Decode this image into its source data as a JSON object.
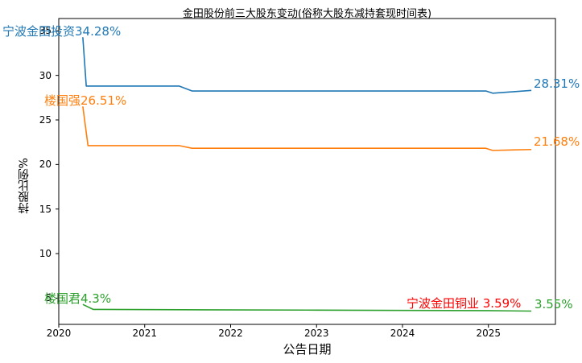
{
  "figure": {
    "background": "#ffffff"
  },
  "chart_data": {
    "type": "line",
    "title": "金田股份前三大股东变动(俗称大股东减持套现时间表)",
    "xlabel": "公告日期",
    "ylabel": "持股比例%",
    "axis_color": "#000000",
    "text_color": "#000000",
    "grid": false,
    "legend": "inline-labels",
    "xlim": [
      2020.0,
      2025.78
    ],
    "ylim": [
      2.06,
      36.38
    ],
    "xtick_labels": [
      "2020",
      "2021",
      "2022",
      "2023",
      "2024",
      "2025"
    ],
    "xtick_values": [
      2020,
      2021,
      2022,
      2023,
      2024,
      2025
    ],
    "ytick_labels": [
      "5",
      "10",
      "15",
      "20",
      "25",
      "30",
      "35"
    ],
    "ytick_values": [
      5,
      10,
      15,
      20,
      25,
      30,
      35
    ],
    "series": [
      {
        "name": "宁波金田投资",
        "color": "#1f77b4",
        "start_label": "宁波金田投资34.28%",
        "end_label": "28.31%",
        "x": [
          2020.28,
          2020.32,
          2021.4,
          2021.55,
          2024.97,
          2025.05,
          2025.5
        ],
        "y": [
          34.28,
          28.8,
          28.8,
          28.25,
          28.25,
          28.0,
          28.31
        ]
      },
      {
        "name": "楼国强",
        "color": "#ff7f0e",
        "start_label": "楼国强26.51%",
        "end_label": "21.68%",
        "x": [
          2020.28,
          2020.34,
          2021.4,
          2021.55,
          2024.97,
          2025.05,
          2025.5
        ],
        "y": [
          26.51,
          22.12,
          22.12,
          21.82,
          21.82,
          21.58,
          21.68
        ]
      },
      {
        "name": "楼国君",
        "color": "#2ca02c",
        "start_label": "楼国君4.3%",
        "end_label": "3.55%",
        "x": [
          2020.28,
          2020.4,
          2021.45,
          2023.0,
          2025.0,
          2025.5
        ],
        "y": [
          4.3,
          3.74,
          3.7,
          3.66,
          3.6,
          3.55
        ]
      }
    ],
    "annotations": [
      {
        "text": "宁波金田铜业 3.59%",
        "color": "#ff0000"
      }
    ]
  }
}
